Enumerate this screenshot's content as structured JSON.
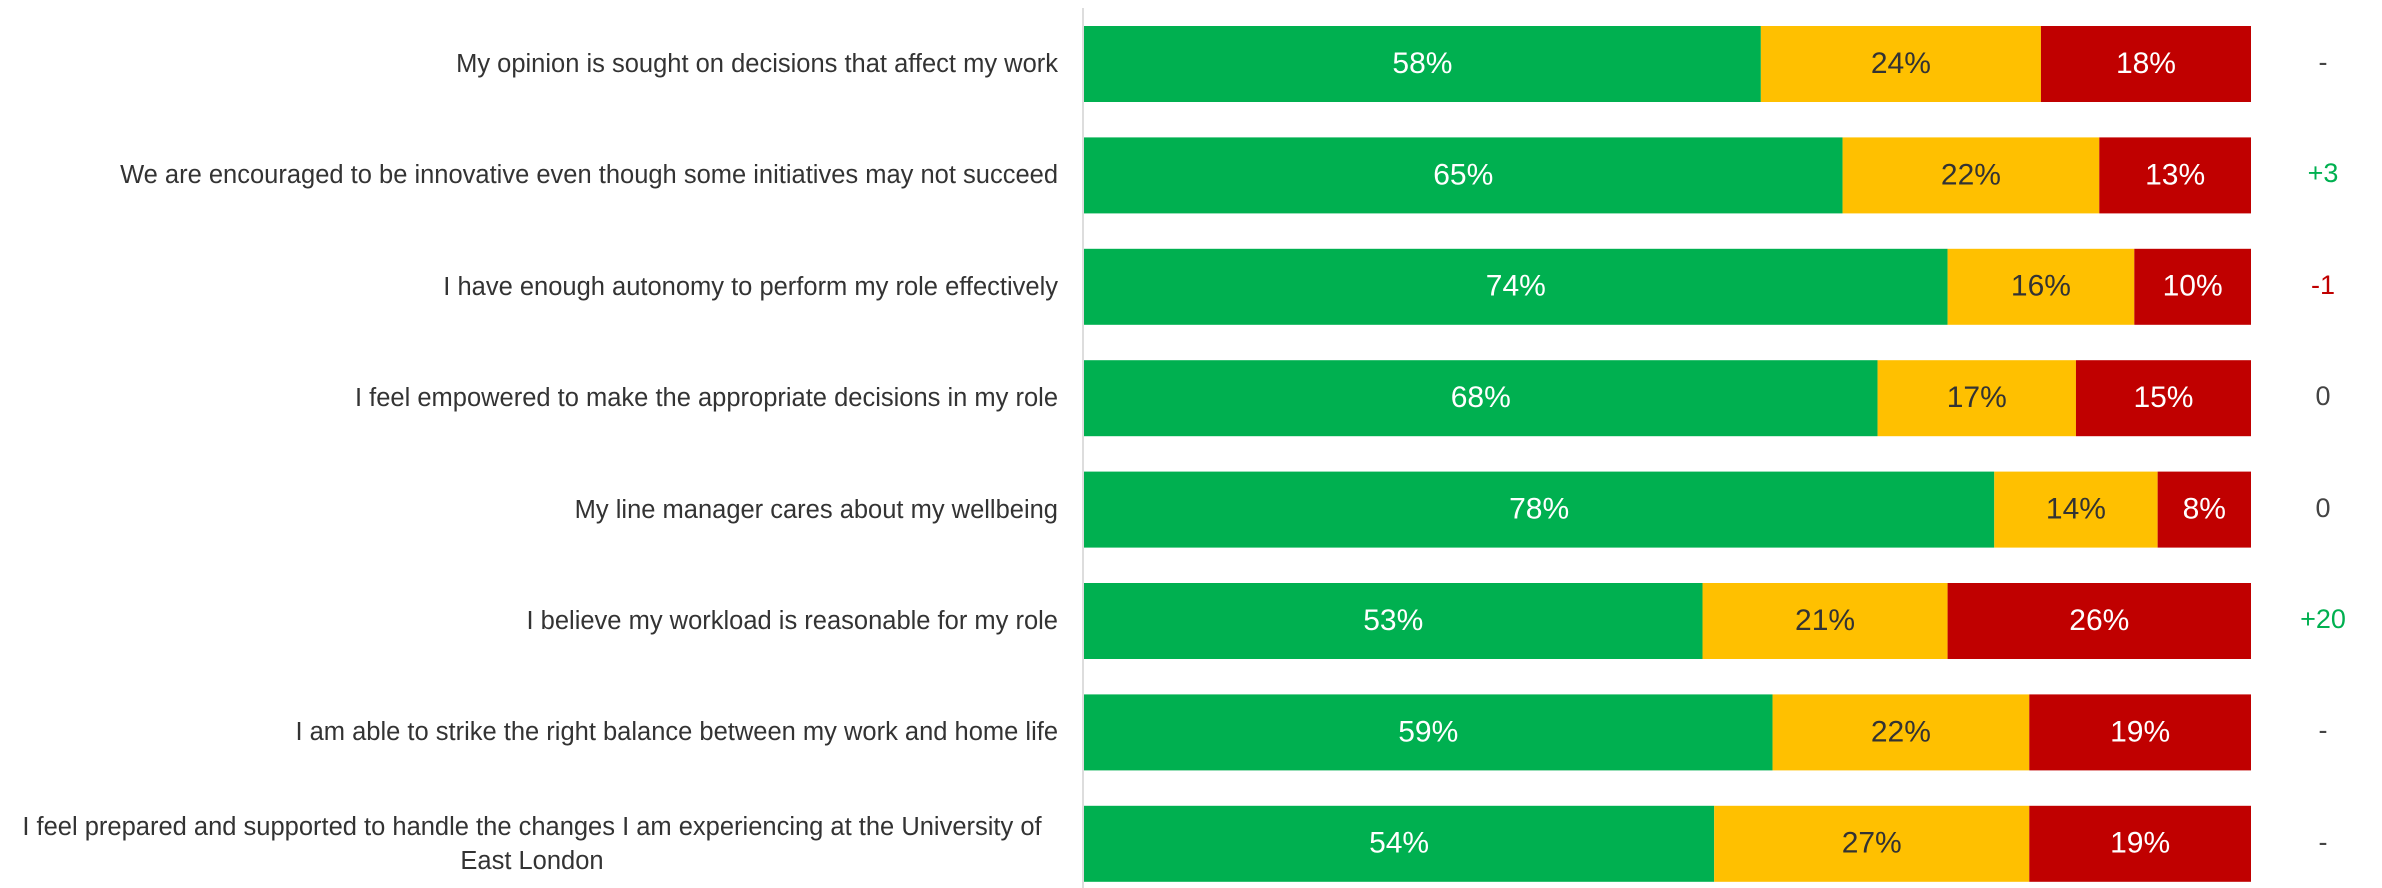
{
  "chart_data": {
    "type": "stacked-bar-horizontal",
    "categories": [
      "My opinion is sought on decisions that affect my work",
      "We are encouraged to be innovative even though some initiatives may not succeed",
      "I have enough autonomy to perform my role effectively",
      "I feel empowered to make the appropriate decisions in my role",
      "My line manager cares about my wellbeing",
      "I believe my workload is reasonable for my role",
      "I am able to strike the right balance between my work and home life",
      "I feel prepared and supported to handle the changes I am experiencing at the University of East London"
    ],
    "xlim": [
      0,
      100
    ],
    "series": [
      {
        "color": "#00b050",
        "label_color": "#ffffff",
        "values": [
          58,
          65,
          74,
          68,
          78,
          53,
          59,
          54
        ],
        "value_labels": [
          "58%",
          "65%",
          "74%",
          "68%",
          "78%",
          "53%",
          "59%",
          "54%"
        ]
      },
      {
        "color": "#ffc000",
        "label_color": "#333333",
        "values": [
          24,
          22,
          16,
          17,
          14,
          21,
          22,
          27
        ],
        "value_labels": [
          "24%",
          "22%",
          "16%",
          "17%",
          "14%",
          "21%",
          "22%",
          "27%"
        ]
      },
      {
        "color": "#c00000",
        "label_color": "#ffffff",
        "values": [
          18,
          13,
          10,
          15,
          8,
          26,
          19,
          19
        ],
        "value_labels": [
          "18%",
          "13%",
          "10%",
          "15%",
          "8%",
          "26%",
          "19%",
          "19%"
        ]
      }
    ],
    "changes": [
      "-",
      "+3",
      "-1",
      "0",
      "0",
      "+20",
      "-",
      "-"
    ],
    "change_colors": {
      "positive": "#00b050",
      "negative": "#c00000",
      "neutral": "#444444"
    }
  }
}
